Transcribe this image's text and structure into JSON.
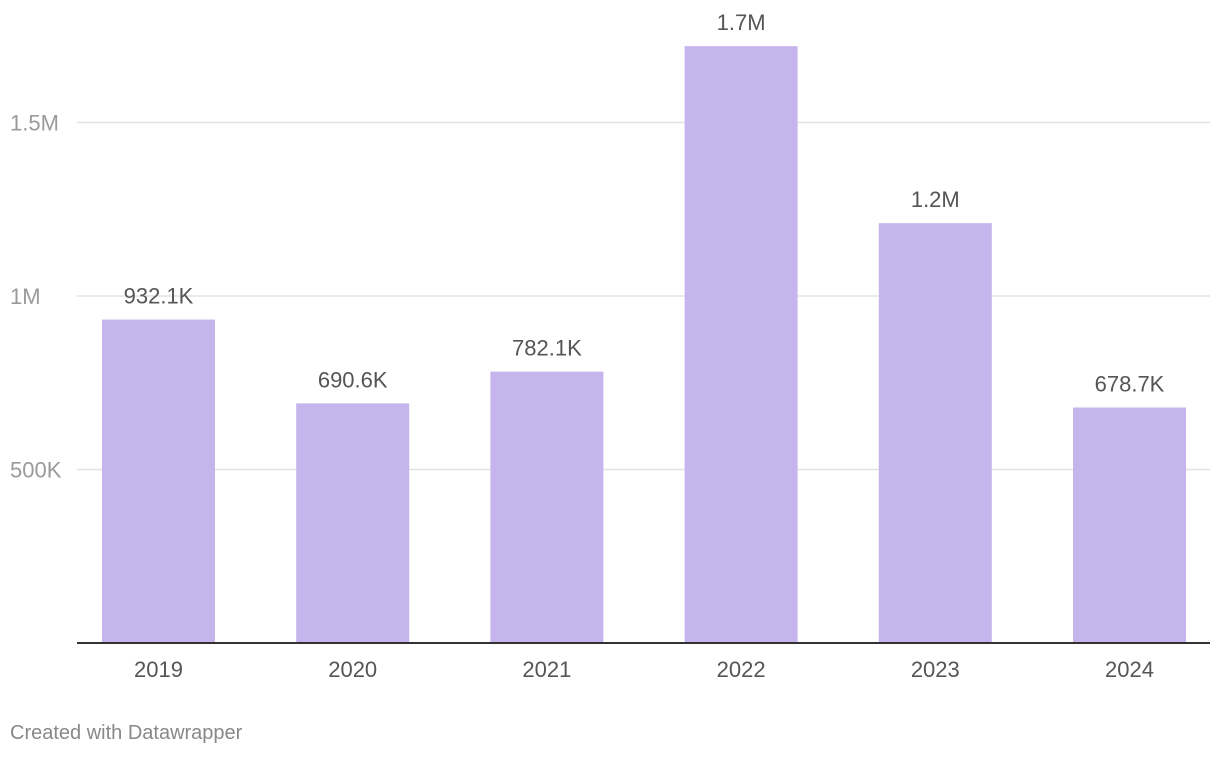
{
  "chart_data": {
    "type": "bar",
    "categories": [
      "2019",
      "2020",
      "2021",
      "2022",
      "2023",
      "2024"
    ],
    "values": [
      932100,
      690600,
      782100,
      1720000,
      1210000,
      678700
    ],
    "data_labels": [
      "932.1K",
      "690.6K",
      "782.1K",
      "1.7M",
      "1.2M",
      "678.7K"
    ],
    "y_ticks": [
      {
        "value": 500000,
        "label": "500K"
      },
      {
        "value": 1000000,
        "label": "1M"
      },
      {
        "value": 1500000,
        "label": "1.5M"
      }
    ],
    "ylim": [
      0,
      1800000
    ],
    "grid": true,
    "bar_color": "#c6b4ec",
    "title": "",
    "xlabel": "",
    "ylabel": ""
  },
  "footer": {
    "credit": "Created with Datawrapper"
  }
}
